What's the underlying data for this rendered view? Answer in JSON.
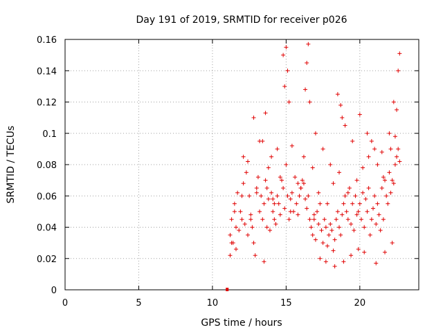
{
  "chart_data": {
    "type": "scatter",
    "title": "Day 191 of 2019, SRMTID for receiver p026",
    "xlabel": "GPS time / hours",
    "ylabel": "SRMTID / TECUs",
    "xlim": [
      0,
      24
    ],
    "ylim": [
      0,
      0.16
    ],
    "xticks": [
      0,
      5,
      10,
      15,
      20
    ],
    "xtick_labels": [
      "0",
      "5",
      "10",
      "15",
      "20"
    ],
    "yticks": [
      0,
      0.02,
      0.04,
      0.06,
      0.08,
      0.1,
      0.12,
      0.14,
      0.16
    ],
    "ytick_labels": [
      "0",
      "0.02",
      "0.04",
      "0.06",
      "0.08",
      "0.1",
      "0.12",
      "0.14",
      "0.16"
    ],
    "grid": true,
    "marker": "plus",
    "color": "#e00000",
    "zero_marker": {
      "x": 11.0,
      "y": 0.0
    },
    "series": [
      {
        "name": "SRMTID",
        "x": [
          11.2,
          11.3,
          11.4,
          11.5,
          11.6,
          11.7,
          11.8,
          11.9,
          12.0,
          12.1,
          12.2,
          12.3,
          12.4,
          12.5,
          12.6,
          12.7,
          12.8,
          12.9,
          13.0,
          13.1,
          13.2,
          13.3,
          13.4,
          13.5,
          13.6,
          13.7,
          13.8,
          13.9,
          14.0,
          14.1,
          14.2,
          14.3,
          14.4,
          14.5,
          14.6,
          14.7,
          14.8,
          14.9,
          15.0,
          15.1,
          15.2,
          15.3,
          15.4,
          15.5,
          15.6,
          15.7,
          15.8,
          15.9,
          16.0,
          16.1,
          16.2,
          16.3,
          16.4,
          16.5,
          16.6,
          16.7,
          16.8,
          16.9,
          17.0,
          17.1,
          17.2,
          17.3,
          17.4,
          17.5,
          17.6,
          17.7,
          17.8,
          17.9,
          18.0,
          18.1,
          18.2,
          18.3,
          18.4,
          18.5,
          18.6,
          18.7,
          18.8,
          18.9,
          19.0,
          19.1,
          19.2,
          19.3,
          19.4,
          19.5,
          19.6,
          19.7,
          19.8,
          19.9,
          20.0,
          20.1,
          20.2,
          20.3,
          20.4,
          20.5,
          20.6,
          20.7,
          20.8,
          20.9,
          21.0,
          21.1,
          21.2,
          21.3,
          21.4,
          21.5,
          21.6,
          21.7,
          21.8,
          21.9,
          22.0,
          22.1,
          22.2,
          22.3,
          22.4,
          22.5,
          22.6,
          22.7,
          11.3,
          11.6,
          12.0,
          12.4,
          12.8,
          13.2,
          13.6,
          14.0,
          14.4,
          14.8,
          14.9,
          15.0,
          15.1,
          15.2,
          16.3,
          16.4,
          16.5,
          16.6,
          17.0,
          17.5,
          18.0,
          18.5,
          18.7,
          18.8,
          19.0,
          19.5,
          20.0,
          20.5,
          20.8,
          21.0,
          21.5,
          22.0,
          22.3,
          22.5,
          22.6,
          22.7,
          11.2,
          11.5,
          12.1,
          12.6,
          13.0,
          13.4,
          13.8,
          14.2,
          14.6,
          15.4,
          15.8,
          16.2,
          16.8,
          17.2,
          17.8,
          18.2,
          18.6,
          19.2,
          19.8,
          20.2,
          20.6,
          21.2,
          21.6,
          22.1,
          22.4,
          13.5,
          13.7,
          14.1,
          15.3,
          16.0,
          16.9,
          17.3,
          17.7,
          18.3,
          18.9,
          19.4,
          19.9,
          20.3,
          21.1,
          21.7,
          22.2
        ],
        "y": [
          0.035,
          0.045,
          0.03,
          0.055,
          0.04,
          0.062,
          0.038,
          0.05,
          0.045,
          0.068,
          0.042,
          0.075,
          0.035,
          0.06,
          0.048,
          0.04,
          0.03,
          0.022,
          0.065,
          0.072,
          0.05,
          0.06,
          0.045,
          0.055,
          0.07,
          0.04,
          0.058,
          0.038,
          0.062,
          0.05,
          0.045,
          0.042,
          0.06,
          0.055,
          0.048,
          0.07,
          0.065,
          0.052,
          0.08,
          0.06,
          0.045,
          0.058,
          0.062,
          0.05,
          0.072,
          0.055,
          0.048,
          0.06,
          0.065,
          0.07,
          0.068,
          0.058,
          0.052,
          0.06,
          0.045,
          0.04,
          0.035,
          0.048,
          0.032,
          0.05,
          0.042,
          0.055,
          0.038,
          0.03,
          0.045,
          0.04,
          0.028,
          0.035,
          0.042,
          0.038,
          0.025,
          0.032,
          0.045,
          0.05,
          0.04,
          0.035,
          0.048,
          0.055,
          0.06,
          0.05,
          0.045,
          0.065,
          0.042,
          0.055,
          0.038,
          0.06,
          0.048,
          0.05,
          0.055,
          0.045,
          0.062,
          0.04,
          0.058,
          0.05,
          0.065,
          0.035,
          0.045,
          0.052,
          0.06,
          0.042,
          0.055,
          0.048,
          0.038,
          0.065,
          0.045,
          0.07,
          0.06,
          0.055,
          0.075,
          0.062,
          0.07,
          0.068,
          0.08,
          0.085,
          0.09,
          0.082,
          0.03,
          0.026,
          0.06,
          0.082,
          0.11,
          0.095,
          0.113,
          0.085,
          0.09,
          0.15,
          0.13,
          0.155,
          0.14,
          0.12,
          0.128,
          0.145,
          0.157,
          0.12,
          0.1,
          0.09,
          0.08,
          0.125,
          0.118,
          0.11,
          0.105,
          0.095,
          0.112,
          0.1,
          0.095,
          0.09,
          0.088,
          0.1,
          0.12,
          0.115,
          0.14,
          0.151,
          0.022,
          0.05,
          0.085,
          0.045,
          0.062,
          0.095,
          0.078,
          0.055,
          0.072,
          0.092,
          0.068,
          0.085,
          0.078,
          0.062,
          0.055,
          0.068,
          0.075,
          0.062,
          0.07,
          0.078,
          0.085,
          0.08,
          0.072,
          0.09,
          0.098,
          0.018,
          0.065,
          0.058,
          0.05,
          0.065,
          0.045,
          0.02,
          0.018,
          0.015,
          0.018,
          0.022,
          0.026,
          0.024,
          0.017,
          0.024,
          0.03
        ]
      }
    ]
  }
}
